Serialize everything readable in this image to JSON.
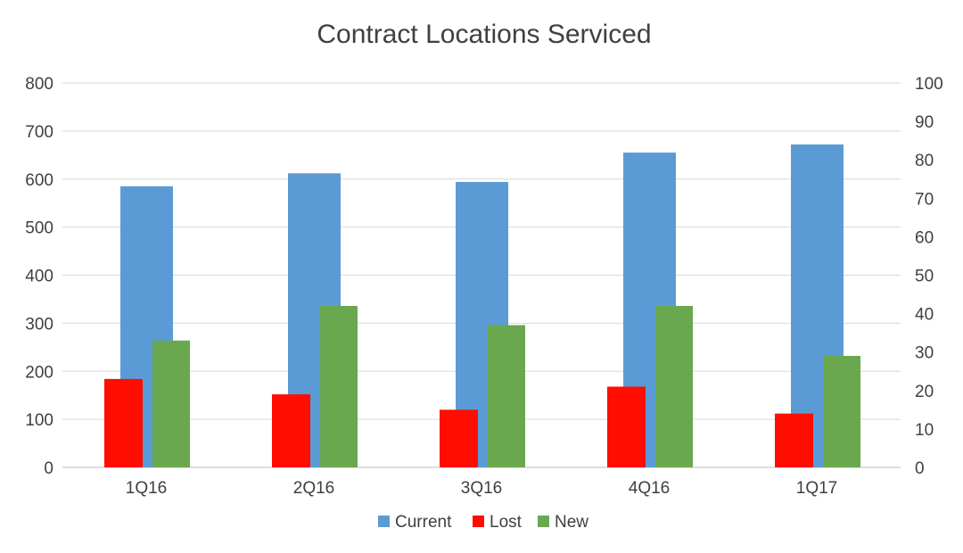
{
  "chart_data": {
    "type": "bar",
    "title": "Contract Locations Serviced",
    "categories": [
      "1Q16",
      "2Q16",
      "3Q16",
      "4Q16",
      "1Q17"
    ],
    "series": [
      {
        "name": "Current",
        "axis": "left",
        "color": "#5b9bd5",
        "values": [
          585,
          612,
          594,
          655,
          672
        ]
      },
      {
        "name": "Lost",
        "axis": "right",
        "color": "#ff0d00",
        "values": [
          23,
          19,
          15,
          21,
          14
        ]
      },
      {
        "name": "New",
        "axis": "right",
        "color": "#6aa84f",
        "values": [
          33,
          42,
          37,
          42,
          29
        ]
      }
    ],
    "ylim": [
      0,
      800
    ],
    "yticks": [
      0,
      100,
      200,
      300,
      400,
      500,
      600,
      700,
      800
    ],
    "y2lim": [
      0,
      100
    ],
    "y2ticks": [
      0,
      10,
      20,
      30,
      40,
      50,
      60,
      70,
      80,
      90,
      100
    ],
    "grid": true,
    "legend": "bottom"
  }
}
